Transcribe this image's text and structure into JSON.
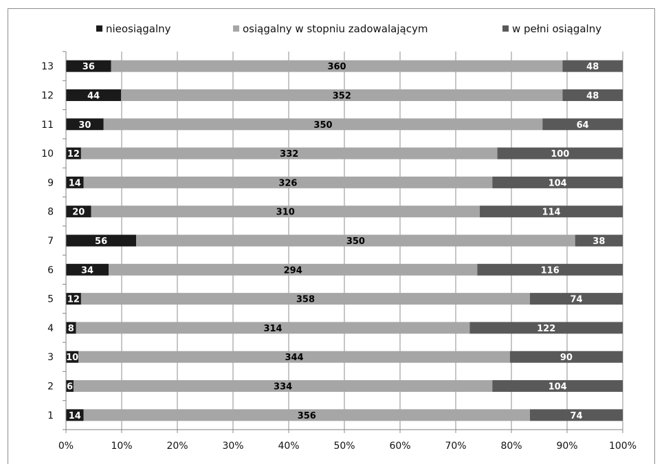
{
  "chart_data": {
    "type": "bar",
    "orientation": "horizontal",
    "stacking": "percent",
    "categories": [
      "1",
      "2",
      "3",
      "4",
      "5",
      "6",
      "7",
      "8",
      "9",
      "10",
      "11",
      "12",
      "13"
    ],
    "series": [
      {
        "name": "nieosiągalny",
        "color": "#1a1a1a",
        "label_color": "#ffffff",
        "values": [
          14,
          6,
          10,
          8,
          12,
          34,
          56,
          20,
          14,
          12,
          30,
          44,
          36
        ]
      },
      {
        "name": "osiągalny w stopniu zadowalającym",
        "color": "#a6a6a6",
        "label_color": "#000000",
        "values": [
          356,
          334,
          344,
          314,
          358,
          294,
          350,
          310,
          326,
          332,
          350,
          352,
          360
        ]
      },
      {
        "name": "w pełni osiągalny",
        "color": "#595959",
        "label_color": "#ffffff",
        "values": [
          74,
          104,
          90,
          122,
          74,
          116,
          38,
          114,
          104,
          100,
          64,
          48,
          48
        ]
      }
    ],
    "xticks": [
      "0%",
      "10%",
      "20%",
      "30%",
      "40%",
      "50%",
      "60%",
      "70%",
      "80%",
      "90%",
      "100%"
    ],
    "xlim": [
      0,
      100
    ],
    "grid": "vertical",
    "legend": "top",
    "title": "",
    "xlabel": "",
    "ylabel": ""
  }
}
